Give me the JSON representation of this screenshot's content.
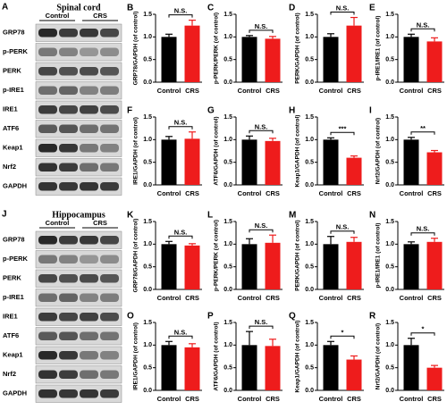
{
  "blots": [
    {
      "panel": "A",
      "title": "Spinal cord",
      "groups": [
        "Control",
        "CRS"
      ],
      "rows": [
        "GRP78",
        "p-PERK",
        "PERK",
        "p-IRE1",
        "IRE1",
        "ATF6",
        "Keap1",
        "Nrf2",
        "GAPDH"
      ]
    },
    {
      "panel": "J",
      "title": "Hippocampus",
      "groups": [
        "Control",
        "CRS"
      ],
      "rows": [
        "GRP78",
        "p-PERK",
        "PERK",
        "p-IRE1",
        "IRE1",
        "ATF6",
        "Keap1",
        "Nrf2",
        "GAPDH"
      ]
    }
  ],
  "chart_data": [
    {
      "type": "bar",
      "panel": "B",
      "ylabel": "GRP78/GAPDH (of control)",
      "categories": [
        "Control",
        "CRS"
      ],
      "values": [
        1.0,
        1.25
      ],
      "errors": [
        0.06,
        0.12
      ],
      "colors": [
        "#000000",
        "#ee1c1c"
      ],
      "annotation": "N.S.",
      "ylim": [
        0,
        1.5
      ],
      "yticks": [
        {
          "value": 0,
          "label": "0.0"
        },
        0.5,
        {
          "value": 1,
          "label": "1.0"
        },
        1.5
      ]
    },
    {
      "type": "bar",
      "panel": "C",
      "ylabel": "p-PERK/PERK (of control)",
      "categories": [
        "Control",
        "CRS"
      ],
      "values": [
        1.0,
        0.96
      ],
      "errors": [
        0.03,
        0.05
      ],
      "colors": [
        "#000000",
        "#ee1c1c"
      ],
      "annotation": "N.S.",
      "ylim": [
        0,
        1.5
      ],
      "yticks": [
        {
          "value": 0,
          "label": "0.0"
        },
        0.5,
        {
          "value": 1,
          "label": "1.0"
        },
        1.5
      ]
    },
    {
      "type": "bar",
      "panel": "D",
      "ylabel": "PERK/GAPDH (of control)",
      "categories": [
        "Control",
        "CRS"
      ],
      "values": [
        1.0,
        1.25
      ],
      "errors": [
        0.07,
        0.18
      ],
      "colors": [
        "#000000",
        "#ee1c1c"
      ],
      "annotation": "N.S.",
      "ylim": [
        0,
        1.5
      ],
      "yticks": [
        {
          "value": 0,
          "label": "0.0"
        },
        0.5,
        {
          "value": 1,
          "label": "1.0"
        },
        1.5
      ]
    },
    {
      "type": "bar",
      "panel": "E",
      "ylabel": "p-IRE1/IRE1 (of control)",
      "categories": [
        "Control",
        "CRS"
      ],
      "values": [
        1.0,
        0.9
      ],
      "errors": [
        0.06,
        0.08
      ],
      "colors": [
        "#000000",
        "#ee1c1c"
      ],
      "annotation": "N.S.",
      "ylim": [
        0,
        1.5
      ],
      "yticks": [
        {
          "value": 0,
          "label": "0.0"
        },
        0.5,
        {
          "value": 1,
          "label": "1.0"
        },
        1.5
      ]
    },
    {
      "type": "bar",
      "panel": "F",
      "ylabel": "IRE1/GAPDH (of control)",
      "categories": [
        "Control",
        "CRS"
      ],
      "values": [
        1.0,
        1.02
      ],
      "errors": [
        0.07,
        0.15
      ],
      "colors": [
        "#000000",
        "#ee1c1c"
      ],
      "annotation": "N.S.",
      "ylim": [
        0,
        1.5
      ],
      "yticks": [
        {
          "value": 0,
          "label": "0.0"
        },
        0.5,
        {
          "value": 1,
          "label": "1.0"
        },
        1.5
      ]
    },
    {
      "type": "bar",
      "panel": "G",
      "ylabel": "ATF6/GAPDH (of control)",
      "categories": [
        "Control",
        "CRS"
      ],
      "values": [
        1.0,
        0.97
      ],
      "errors": [
        0.08,
        0.06
      ],
      "colors": [
        "#000000",
        "#ee1c1c"
      ],
      "annotation": "N.S.",
      "ylim": [
        0,
        1.5
      ],
      "yticks": [
        {
          "value": 0,
          "label": "0.0"
        },
        0.5,
        {
          "value": 1,
          "label": "1.0"
        },
        1.5
      ]
    },
    {
      "type": "bar",
      "panel": "H",
      "ylabel": "Keap1/GAPDH (of control)",
      "categories": [
        "Control",
        "CRS"
      ],
      "values": [
        1.0,
        0.6
      ],
      "errors": [
        0.04,
        0.04
      ],
      "colors": [
        "#000000",
        "#ee1c1c"
      ],
      "annotation": "***",
      "ylim": [
        0,
        1.5
      ],
      "yticks": [
        {
          "value": 0,
          "label": "0.0"
        },
        0.5,
        {
          "value": 1,
          "label": "1.0"
        },
        1.5
      ]
    },
    {
      "type": "bar",
      "panel": "I",
      "ylabel": "Nrf2/GAPDH (of control)",
      "categories": [
        "Control",
        "CRS"
      ],
      "values": [
        1.0,
        0.72
      ],
      "errors": [
        0.05,
        0.04
      ],
      "colors": [
        "#000000",
        "#ee1c1c"
      ],
      "annotation": "**",
      "ylim": [
        0,
        1.5
      ],
      "yticks": [
        {
          "value": 0,
          "label": "0.0"
        },
        0.5,
        {
          "value": 1,
          "label": "1.0"
        },
        1.5
      ]
    },
    {
      "type": "bar",
      "panel": "K",
      "ylabel": "GRP78/GAPDH (of control)",
      "categories": [
        "Control",
        "CRS"
      ],
      "values": [
        1.0,
        0.97
      ],
      "errors": [
        0.06,
        0.04
      ],
      "colors": [
        "#000000",
        "#ee1c1c"
      ],
      "annotation": "N.S.",
      "ylim": [
        0,
        1.5
      ],
      "yticks": [
        {
          "value": 0,
          "label": "0.0"
        },
        0.5,
        {
          "value": 1,
          "label": "1.0"
        },
        1.5
      ]
    },
    {
      "type": "bar",
      "panel": "L",
      "ylabel": "p-PERK/PERK (of control)",
      "categories": [
        "Control",
        "CRS"
      ],
      "values": [
        1.0,
        1.03
      ],
      "errors": [
        0.12,
        0.17
      ],
      "colors": [
        "#000000",
        "#ee1c1c"
      ],
      "annotation": "N.S.",
      "ylim": [
        0,
        1.5
      ],
      "yticks": [
        {
          "value": 0,
          "label": "0.0"
        },
        0.5,
        {
          "value": 1,
          "label": "1.0"
        },
        1.5
      ]
    },
    {
      "type": "bar",
      "panel": "M",
      "ylabel": "PERK/GAPDH (of control)",
      "categories": [
        "Control",
        "CRS"
      ],
      "values": [
        1.0,
        1.05
      ],
      "errors": [
        0.17,
        0.1
      ],
      "colors": [
        "#000000",
        "#ee1c1c"
      ],
      "annotation": "N.S.",
      "ylim": [
        0,
        1.5
      ],
      "yticks": [
        {
          "value": 0,
          "label": "0.0"
        },
        0.5,
        {
          "value": 1,
          "label": "1.0"
        },
        1.5
      ]
    },
    {
      "type": "bar",
      "panel": "N",
      "ylabel": "p-IRE1/IRE1 (of control)",
      "categories": [
        "Control",
        "CRS"
      ],
      "values": [
        1.0,
        1.05
      ],
      "errors": [
        0.05,
        0.08
      ],
      "colors": [
        "#000000",
        "#ee1c1c"
      ],
      "annotation": "N.S.",
      "ylim": [
        0,
        1.5
      ],
      "yticks": [
        {
          "value": 0,
          "label": "0.0"
        },
        0.5,
        {
          "value": 1,
          "label": "1.0"
        },
        1.5
      ]
    },
    {
      "type": "bar",
      "panel": "O",
      "ylabel": "IRE1/GAPDH (of control)",
      "categories": [
        "Control",
        "CRS"
      ],
      "values": [
        1.0,
        0.95
      ],
      "errors": [
        0.08,
        0.08
      ],
      "colors": [
        "#000000",
        "#ee1c1c"
      ],
      "annotation": "N.S.",
      "ylim": [
        0,
        1.5
      ],
      "yticks": [
        {
          "value": 0,
          "label": "0.0"
        },
        0.5,
        {
          "value": 1,
          "label": "1.0"
        },
        1.5
      ]
    },
    {
      "type": "bar",
      "panel": "P",
      "ylabel": "ATF6/GAPDH (of control)",
      "categories": [
        "Control",
        "CRS"
      ],
      "values": [
        1.0,
        0.98
      ],
      "errors": [
        0.3,
        0.15
      ],
      "colors": [
        "#000000",
        "#ee1c1c"
      ],
      "annotation": "N.S.",
      "ylim": [
        0,
        1.5
      ],
      "yticks": [
        {
          "value": 0,
          "label": "0.0"
        },
        0.5,
        {
          "value": 1,
          "label": "1.0"
        },
        1.5
      ]
    },
    {
      "type": "bar",
      "panel": "Q",
      "ylabel": "Keap1/GAPDH (of control)",
      "categories": [
        "Control",
        "CRS"
      ],
      "values": [
        1.0,
        0.68
      ],
      "errors": [
        0.08,
        0.08
      ],
      "colors": [
        "#000000",
        "#ee1c1c"
      ],
      "annotation": "*",
      "ylim": [
        0,
        1.5
      ],
      "yticks": [
        {
          "value": 0,
          "label": "0.0"
        },
        0.5,
        {
          "value": 1,
          "label": "1.0"
        },
        1.5
      ]
    },
    {
      "type": "bar",
      "panel": "R",
      "ylabel": "Nrf2/GAPDH (of control)",
      "categories": [
        "Control",
        "CRS"
      ],
      "values": [
        1.0,
        0.5
      ],
      "errors": [
        0.15,
        0.05
      ],
      "colors": [
        "#000000",
        "#ee1c1c"
      ],
      "annotation": "*",
      "ylim": [
        0,
        1.5
      ],
      "yticks": [
        {
          "value": 0,
          "label": "0.0"
        },
        0.5,
        {
          "value": 1,
          "label": "1.0"
        },
        1.5
      ]
    }
  ]
}
